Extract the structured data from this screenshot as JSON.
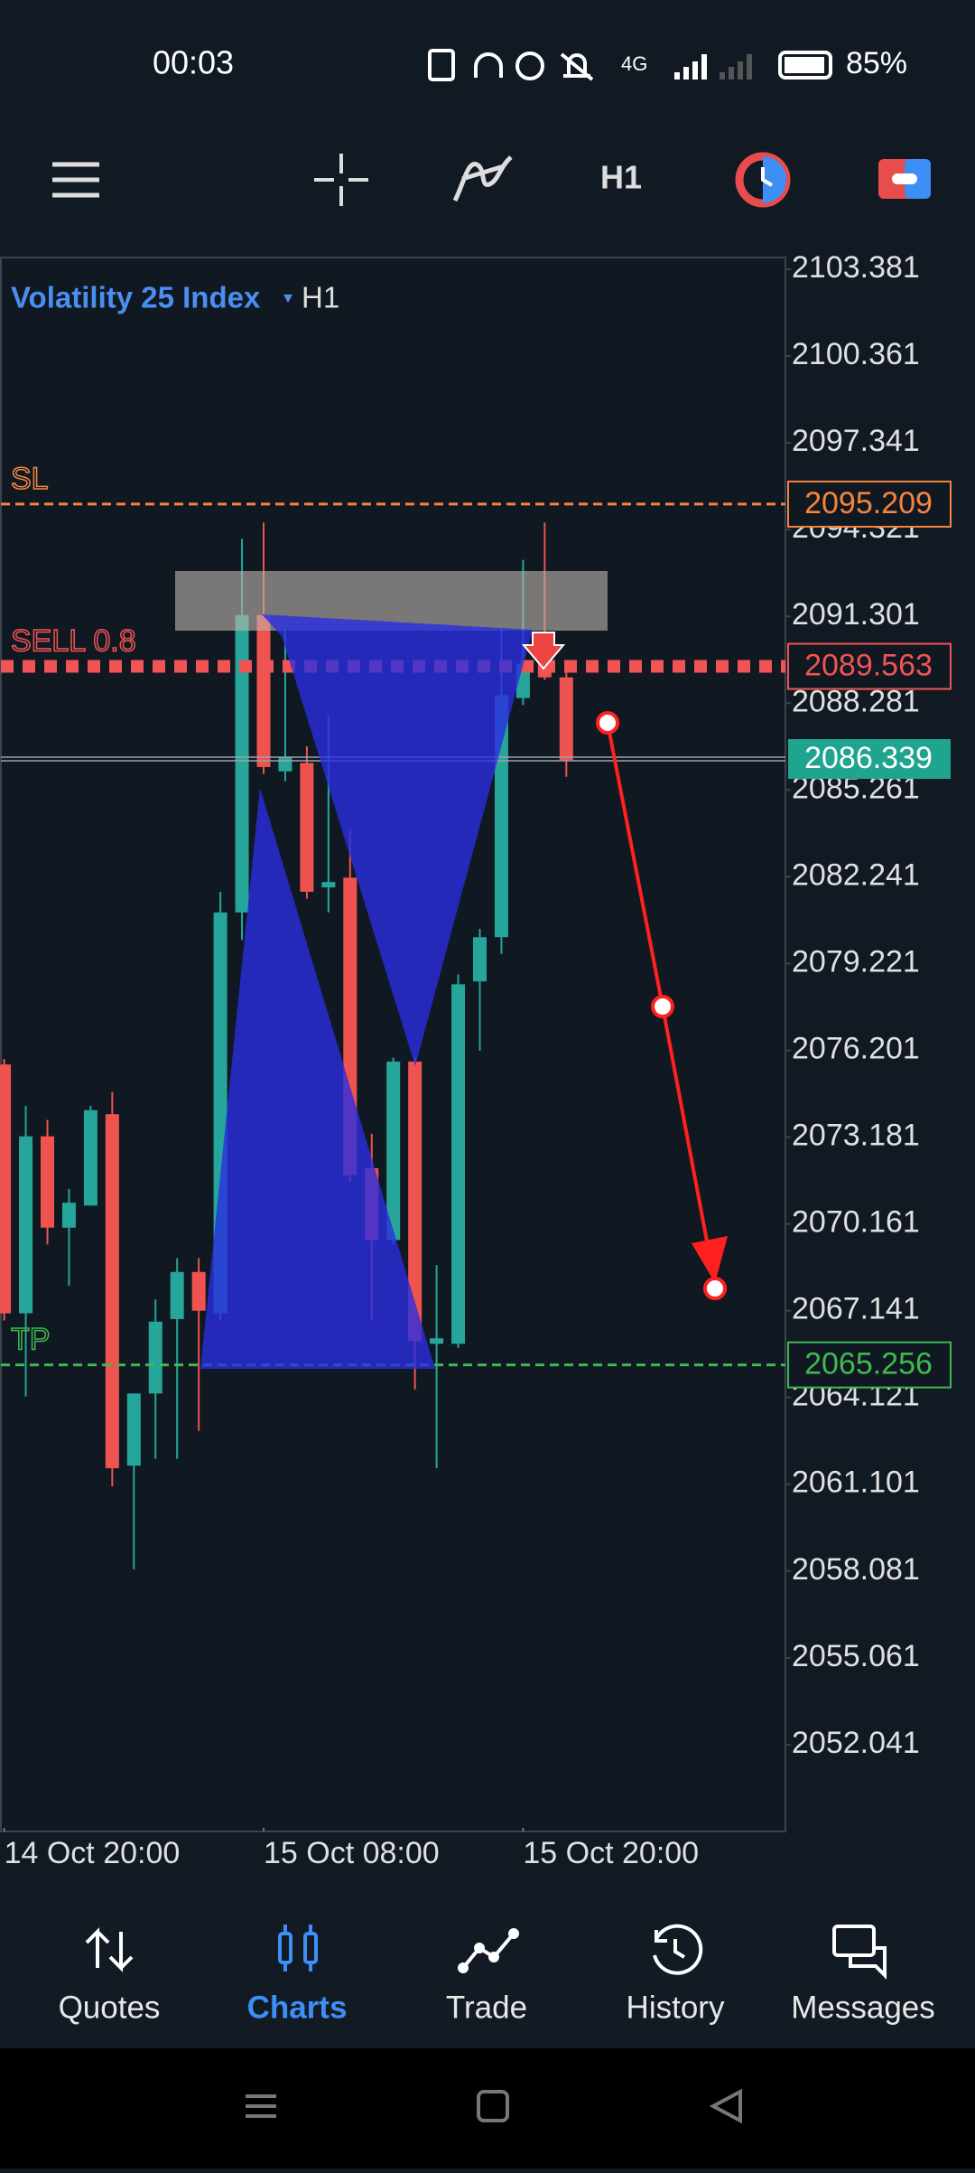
{
  "status_bar": {
    "time": "00:03",
    "battery": "85%"
  },
  "toolbar": {
    "timeframe": "H1"
  },
  "chart_data": {
    "type": "candlestick",
    "symbol": "Volatility 25 Index",
    "timeframe": "H1",
    "categories": [
      "14 Oct 20:00",
      null,
      null,
      null,
      null,
      null,
      null,
      null,
      null,
      null,
      null,
      null,
      "15 Oct 08:00",
      null,
      null,
      null,
      null,
      null,
      null,
      null,
      null,
      null,
      null,
      null,
      "15 Oct 20:00",
      null,
      null
    ],
    "open": [
      2075.71,
      2067.05,
      2073.21,
      2070.03,
      2070.8,
      2073.98,
      2061.75,
      2064.26,
      2066.85,
      2068.49,
      2067.05,
      2081.0,
      2091.35,
      2085.91,
      2086.2,
      2081.87,
      2082.21,
      2072.1,
      2069.6,
      2075.81,
      2065.99,
      2065.99,
      2078.6,
      2080.14,
      2088.46,
      2089.66,
      2089.18
    ],
    "high": [
      2075.9,
      2074.27,
      2073.78,
      2071.38,
      2074.27,
      2074.75,
      2064.26,
      2067.53,
      2068.97,
      2068.97,
      2081.72,
      2094.0,
      2094.57,
      2090.87,
      2086.78,
      2087.84,
      2083.89,
      2073.3,
      2075.95,
      2075.95,
      2068.73,
      2078.84,
      2080.43,
      2090.87,
      2093.27,
      2094.57,
      2089.66
    ],
    "low": [
      2066.8,
      2064.16,
      2069.45,
      2068.01,
      2070.8,
      2061.03,
      2058.14,
      2061.99,
      2061.99,
      2062.96,
      2066.81,
      2080.04,
      2085.82,
      2085.57,
      2081.48,
      2081.0,
      2071.62,
      2066.81,
      2069.45,
      2064.4,
      2061.66,
      2065.84,
      2076.19,
      2079.56,
      2088.22,
      2089.09,
      2085.72
    ],
    "close": [
      2067.05,
      2073.21,
      2070.03,
      2070.9,
      2074.12,
      2061.66,
      2064.26,
      2066.76,
      2068.49,
      2067.14,
      2081.0,
      2091.35,
      2086.06,
      2086.39,
      2081.72,
      2082.06,
      2071.86,
      2069.6,
      2075.81,
      2066.08,
      2066.18,
      2078.5,
      2080.14,
      2088.56,
      2089.66,
      2089.18,
      2086.3
    ],
    "up_color": "#26a69a",
    "down_color": "#ef5350",
    "ylim": [
      2049.02,
      2103.79
    ],
    "yticks": [
      2103.381,
      2100.361,
      2097.341,
      2094.321,
      2091.301,
      2088.281,
      2085.261,
      2082.241,
      2079.221,
      2076.201,
      2073.181,
      2070.161,
      2067.141,
      2064.121,
      2061.101,
      2058.081,
      2055.061,
      2052.041
    ],
    "levels": [
      {
        "name": "SL",
        "value": 2095.209,
        "color": "#f5843d"
      },
      {
        "name": "SELL 0.8",
        "value": 2089.563,
        "color": "#f05454"
      },
      {
        "value": 2086.339,
        "color": "#1fa58f"
      },
      {
        "name": "TP",
        "value": 2065.256,
        "color": "#3fb950"
      }
    ]
  },
  "nav": {
    "items": [
      "Quotes",
      "Charts",
      "Trade",
      "History",
      "Messages"
    ],
    "active": 1
  }
}
